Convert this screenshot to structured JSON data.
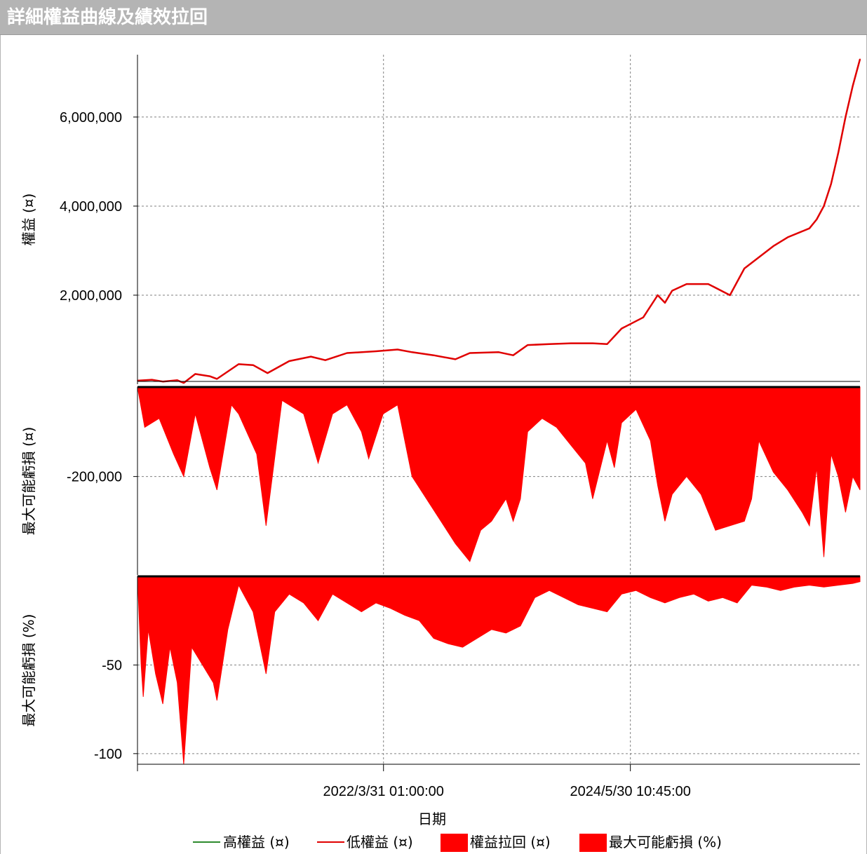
{
  "window": {
    "title": "詳細權益曲線及績效拉回"
  },
  "chart_data": {
    "type": "line+area",
    "xlabel": "日期",
    "x_ticks": [
      "2022/3/31 01:00:00",
      "2024/5/30 10:45:00"
    ],
    "grid": true,
    "legend_position": "bottom",
    "legend": [
      {
        "label": "高權益 (¤)",
        "kind": "line",
        "color": "#2e8b2e"
      },
      {
        "label": "低權益 (¤)",
        "kind": "line",
        "color": "#e00000"
      },
      {
        "label": "權益拉回 (¤)",
        "kind": "box",
        "color": "#ff0000"
      },
      {
        "label": "最大可能虧損 (%)",
        "kind": "box",
        "color": "#ff0000"
      }
    ],
    "panels": [
      {
        "id": "equity",
        "ylabel": "權益 (¤)",
        "ylim": [
          0,
          7400000
        ],
        "yticks": [
          2000000,
          4000000,
          6000000
        ],
        "ytick_labels": [
          "2,000,000",
          "4,000,000",
          "6,000,000"
        ],
        "series_type": "line",
        "color": "#e00000",
        "points": [
          [
            0.0,
            80000
          ],
          [
            0.02,
            100000
          ],
          [
            0.035,
            60000
          ],
          [
            0.055,
            90000
          ],
          [
            0.064,
            30000
          ],
          [
            0.08,
            230000
          ],
          [
            0.1,
            180000
          ],
          [
            0.11,
            120000
          ],
          [
            0.14,
            450000
          ],
          [
            0.16,
            430000
          ],
          [
            0.18,
            250000
          ],
          [
            0.21,
            520000
          ],
          [
            0.24,
            620000
          ],
          [
            0.26,
            540000
          ],
          [
            0.29,
            700000
          ],
          [
            0.33,
            740000
          ],
          [
            0.36,
            780000
          ],
          [
            0.38,
            720000
          ],
          [
            0.41,
            650000
          ],
          [
            0.44,
            560000
          ],
          [
            0.46,
            700000
          ],
          [
            0.5,
            720000
          ],
          [
            0.52,
            650000
          ],
          [
            0.54,
            880000
          ],
          [
            0.57,
            900000
          ],
          [
            0.6,
            920000
          ],
          [
            0.63,
            920000
          ],
          [
            0.65,
            900000
          ],
          [
            0.67,
            1250000
          ],
          [
            0.7,
            1500000
          ],
          [
            0.72,
            2000000
          ],
          [
            0.73,
            1830000
          ],
          [
            0.74,
            2100000
          ],
          [
            0.76,
            2250000
          ],
          [
            0.79,
            2250000
          ],
          [
            0.82,
            2000000
          ],
          [
            0.84,
            2600000
          ],
          [
            0.88,
            3100000
          ],
          [
            0.9,
            3300000
          ],
          [
            0.93,
            3500000
          ],
          [
            0.94,
            3700000
          ],
          [
            0.95,
            4000000
          ],
          [
            0.96,
            4500000
          ],
          [
            0.97,
            5200000
          ],
          [
            0.98,
            6000000
          ],
          [
            0.99,
            6700000
          ],
          [
            1.0,
            7300000
          ]
        ]
      },
      {
        "id": "drawdown-amount",
        "ylabel": "最大可能虧損 (¤)",
        "ylim": [
          -420000,
          0
        ],
        "yticks": [
          -200000
        ],
        "ytick_labels": [
          "-200,000"
        ],
        "series_type": "area",
        "color": "#ff0000",
        "points": [
          [
            0.0,
            0
          ],
          [
            0.01,
            -90000
          ],
          [
            0.03,
            -70000
          ],
          [
            0.05,
            -150000
          ],
          [
            0.064,
            -200000
          ],
          [
            0.08,
            -60000
          ],
          [
            0.1,
            -180000
          ],
          [
            0.11,
            -230000
          ],
          [
            0.13,
            -40000
          ],
          [
            0.14,
            -60000
          ],
          [
            0.165,
            -150000
          ],
          [
            0.178,
            -310000
          ],
          [
            0.2,
            -30000
          ],
          [
            0.23,
            -60000
          ],
          [
            0.25,
            -170000
          ],
          [
            0.27,
            -60000
          ],
          [
            0.29,
            -40000
          ],
          [
            0.31,
            -100000
          ],
          [
            0.32,
            -160000
          ],
          [
            0.34,
            -60000
          ],
          [
            0.36,
            -40000
          ],
          [
            0.38,
            -200000
          ],
          [
            0.4,
            -250000
          ],
          [
            0.42,
            -300000
          ],
          [
            0.44,
            -350000
          ],
          [
            0.46,
            -390000
          ],
          [
            0.475,
            -320000
          ],
          [
            0.49,
            -300000
          ],
          [
            0.51,
            -250000
          ],
          [
            0.52,
            -300000
          ],
          [
            0.53,
            -250000
          ],
          [
            0.54,
            -100000
          ],
          [
            0.56,
            -70000
          ],
          [
            0.58,
            -90000
          ],
          [
            0.6,
            -130000
          ],
          [
            0.62,
            -170000
          ],
          [
            0.63,
            -250000
          ],
          [
            0.65,
            -120000
          ],
          [
            0.66,
            -180000
          ],
          [
            0.67,
            -80000
          ],
          [
            0.69,
            -50000
          ],
          [
            0.71,
            -120000
          ],
          [
            0.72,
            -220000
          ],
          [
            0.73,
            -300000
          ],
          [
            0.74,
            -240000
          ],
          [
            0.76,
            -200000
          ],
          [
            0.78,
            -240000
          ],
          [
            0.8,
            -320000
          ],
          [
            0.82,
            -310000
          ],
          [
            0.84,
            -300000
          ],
          [
            0.85,
            -250000
          ],
          [
            0.86,
            -120000
          ],
          [
            0.88,
            -190000
          ],
          [
            0.9,
            -230000
          ],
          [
            0.92,
            -280000
          ],
          [
            0.93,
            -310000
          ],
          [
            0.94,
            -180000
          ],
          [
            0.95,
            -380000
          ],
          [
            0.96,
            -150000
          ],
          [
            0.97,
            -200000
          ],
          [
            0.98,
            -280000
          ],
          [
            0.99,
            -200000
          ],
          [
            1.0,
            -230000
          ]
        ]
      },
      {
        "id": "drawdown-percent",
        "ylabel": "最大可能虧損 (%)",
        "ylim": [
          -106,
          0
        ],
        "yticks": [
          -50,
          -100
        ],
        "ytick_labels": [
          "-50",
          "-100"
        ],
        "series_type": "area",
        "color": "#ff0000",
        "points": [
          [
            0.0,
            0
          ],
          [
            0.005,
            -50
          ],
          [
            0.008,
            -68
          ],
          [
            0.015,
            -30
          ],
          [
            0.025,
            -55
          ],
          [
            0.035,
            -72
          ],
          [
            0.045,
            -40
          ],
          [
            0.055,
            -60
          ],
          [
            0.064,
            -106
          ],
          [
            0.075,
            -40
          ],
          [
            0.09,
            -50
          ],
          [
            0.105,
            -60
          ],
          [
            0.11,
            -70
          ],
          [
            0.125,
            -30
          ],
          [
            0.14,
            -5
          ],
          [
            0.16,
            -20
          ],
          [
            0.178,
            -55
          ],
          [
            0.19,
            -20
          ],
          [
            0.21,
            -10
          ],
          [
            0.23,
            -15
          ],
          [
            0.25,
            -25
          ],
          [
            0.27,
            -10
          ],
          [
            0.29,
            -15
          ],
          [
            0.31,
            -20
          ],
          [
            0.33,
            -15
          ],
          [
            0.35,
            -18
          ],
          [
            0.37,
            -22
          ],
          [
            0.39,
            -25
          ],
          [
            0.41,
            -35
          ],
          [
            0.43,
            -38
          ],
          [
            0.45,
            -40
          ],
          [
            0.47,
            -35
          ],
          [
            0.49,
            -30
          ],
          [
            0.51,
            -32
          ],
          [
            0.53,
            -28
          ],
          [
            0.55,
            -12
          ],
          [
            0.57,
            -8
          ],
          [
            0.59,
            -12
          ],
          [
            0.61,
            -16
          ],
          [
            0.63,
            -18
          ],
          [
            0.65,
            -20
          ],
          [
            0.67,
            -10
          ],
          [
            0.69,
            -8
          ],
          [
            0.71,
            -12
          ],
          [
            0.73,
            -15
          ],
          [
            0.75,
            -12
          ],
          [
            0.77,
            -10
          ],
          [
            0.79,
            -14
          ],
          [
            0.81,
            -12
          ],
          [
            0.83,
            -15
          ],
          [
            0.85,
            -5
          ],
          [
            0.87,
            -6
          ],
          [
            0.89,
            -8
          ],
          [
            0.91,
            -6
          ],
          [
            0.93,
            -5
          ],
          [
            0.95,
            -6
          ],
          [
            0.97,
            -5
          ],
          [
            0.99,
            -4
          ],
          [
            1.0,
            -3
          ]
        ]
      }
    ]
  }
}
